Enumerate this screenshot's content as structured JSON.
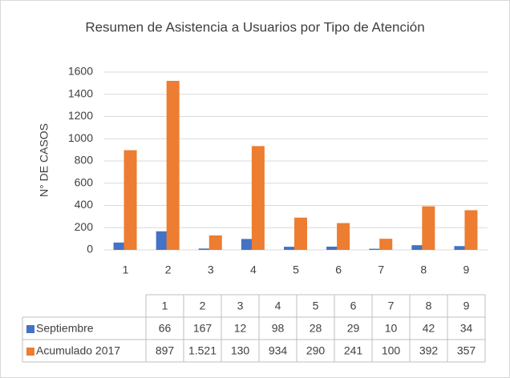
{
  "chart_data": {
    "type": "bar",
    "title": "Resumen de Asistencia a Usuarios por Tipo de Atención",
    "y_label": "N° DE CASOS",
    "categories": [
      "1",
      "2",
      "3",
      "4",
      "5",
      "6",
      "7",
      "8",
      "9"
    ],
    "series": [
      {
        "name": "Septiembre",
        "color": "#4472c4",
        "values": [
          66,
          167,
          12,
          98,
          28,
          29,
          10,
          42,
          34
        ]
      },
      {
        "name": "Acumulado 2017",
        "color": "#ed7d31",
        "values": [
          897,
          1521,
          130,
          934,
          290,
          241,
          100,
          392,
          357
        ],
        "value_labels": [
          "897",
          "1.521",
          "130",
          "934",
          "290",
          "241",
          "100",
          "392",
          "357"
        ]
      }
    ],
    "ylim": [
      0,
      1600
    ],
    "yticks": [
      0,
      200,
      400,
      600,
      800,
      1000,
      1200,
      1400,
      1600
    ],
    "grid": true
  }
}
